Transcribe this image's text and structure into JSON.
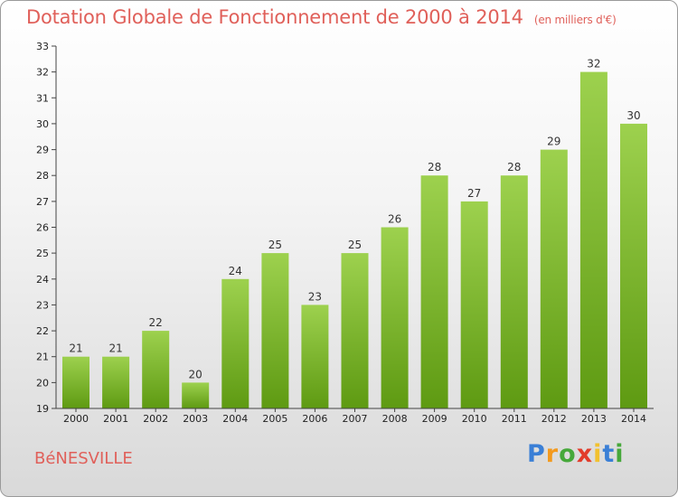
{
  "header": {
    "title": "Dotation Globale de Fonctionnement de 2000 à 2014",
    "subtitle": "(en milliers d'€)"
  },
  "footer": {
    "commune": "BéNESVILLE",
    "logo": [
      "P",
      "r",
      "o",
      "x",
      "i",
      "t",
      "i"
    ]
  },
  "colors": {
    "title": "#e0605a",
    "bar_top": "#9dd14e",
    "bar_bottom": "#5e9a12",
    "axis": "#444444"
  },
  "chart_data": {
    "type": "bar",
    "categories": [
      "2000",
      "2001",
      "2002",
      "2003",
      "2004",
      "2005",
      "2006",
      "2007",
      "2008",
      "2009",
      "2010",
      "2011",
      "2012",
      "2013",
      "2014"
    ],
    "values": [
      21,
      21,
      22,
      20,
      24,
      25,
      23,
      25,
      26,
      28,
      27,
      28,
      29,
      32,
      30
    ],
    "title": "Dotation Globale de Fonctionnement de 2000 à 2014",
    "subtitle": "(en milliers d'€)",
    "ylim": [
      19,
      33
    ],
    "yticks": [
      19,
      20,
      21,
      22,
      23,
      24,
      25,
      26,
      27,
      28,
      29,
      30,
      31,
      32,
      33
    ],
    "grid": false,
    "data_labels": true
  }
}
